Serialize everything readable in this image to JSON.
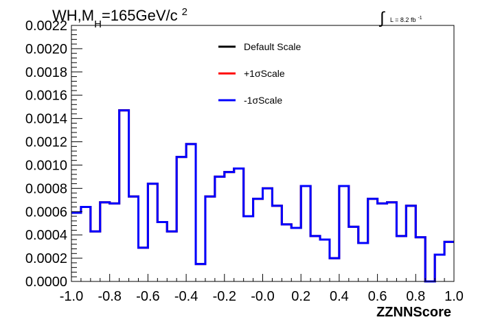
{
  "chart_data": {
    "type": "line",
    "style": "step-histogram",
    "title": {
      "main": "WH,M",
      "subscript": "H",
      "tail": "=165GeV/c",
      "superscript": "2"
    },
    "lumi": {
      "integral_symbol": "∫",
      "text": "L = 8.2 fb",
      "superscript": "-1"
    },
    "xlabel": "ZZNNScore",
    "ylabel": "",
    "xlim": [
      -1.0,
      1.0
    ],
    "ylim": [
      0.0,
      0.0022
    ],
    "x_ticks": [
      "-1.0",
      "-0.8",
      "-0.6",
      "-0.4",
      "-0.2",
      "-0.0",
      "0.2",
      "0.4",
      "0.6",
      "0.8",
      "1.0"
    ],
    "x_tick_values": [
      -1.0,
      -0.8,
      -0.6,
      -0.4,
      -0.2,
      0.0,
      0.2,
      0.4,
      0.6,
      0.8,
      1.0
    ],
    "y_ticks": [
      "0.0000",
      "0.0002",
      "0.0004",
      "0.0006",
      "0.0008",
      "0.0010",
      "0.0012",
      "0.0014",
      "0.0016",
      "0.0018",
      "0.0020",
      "0.0022"
    ],
    "y_tick_values": [
      0.0,
      0.0002,
      0.0004,
      0.0006,
      0.0008,
      0.001,
      0.0012,
      0.0014,
      0.0016,
      0.0018,
      0.002,
      0.0022
    ],
    "bin_edges": [
      -1.0,
      -0.95,
      -0.9,
      -0.85,
      -0.8,
      -0.75,
      -0.7,
      -0.65,
      -0.6,
      -0.55,
      -0.5,
      -0.45,
      -0.4,
      -0.35,
      -0.3,
      -0.25,
      -0.2,
      -0.15,
      -0.1,
      -0.05,
      0.0,
      0.05,
      0.1,
      0.15,
      0.2,
      0.25,
      0.3,
      0.35,
      0.4,
      0.45,
      0.5,
      0.55,
      0.6,
      0.65,
      0.7,
      0.75,
      0.8,
      0.85,
      0.9,
      0.95,
      1.0
    ],
    "legend_position": "top-center",
    "series": [
      {
        "name": "Default Scale",
        "color": "#000000",
        "values": [
          0.00059,
          0.00064,
          0.00043,
          0.00068,
          0.00067,
          0.00147,
          0.00073,
          0.00029,
          0.00084,
          0.00051,
          0.00043,
          0.00107,
          0.00118,
          0.00015,
          0.00073,
          0.0009,
          0.00094,
          0.00097,
          0.00056,
          0.00071,
          0.0008,
          0.00065,
          0.00049,
          0.00046,
          0.00082,
          0.00039,
          0.00036,
          0.0002,
          0.00082,
          0.00047,
          0.00033,
          0.00071,
          0.00067,
          0.00068,
          0.00039,
          0.00065,
          0.00038,
          0.0,
          0.00023,
          0.00034
        ]
      },
      {
        "name": "+1σScale",
        "color": "#ff0000",
        "values": [
          0.00059,
          0.00064,
          0.00043,
          0.00068,
          0.00067,
          0.00147,
          0.00073,
          0.00029,
          0.00084,
          0.00051,
          0.00043,
          0.00107,
          0.00118,
          0.00015,
          0.00073,
          0.0009,
          0.00094,
          0.00097,
          0.00056,
          0.00071,
          0.0008,
          0.00065,
          0.00049,
          0.00046,
          0.00082,
          0.00039,
          0.00036,
          0.0002,
          0.00082,
          0.00047,
          0.00033,
          0.00071,
          0.00067,
          0.00068,
          0.00039,
          0.00065,
          0.00038,
          0.0,
          0.00023,
          0.00034
        ]
      },
      {
        "name": "-1σScale",
        "color": "#0000ff",
        "values": [
          0.00059,
          0.00064,
          0.00043,
          0.00068,
          0.00067,
          0.00147,
          0.00073,
          0.00029,
          0.00084,
          0.00051,
          0.00043,
          0.00107,
          0.00118,
          0.00015,
          0.00073,
          0.0009,
          0.00094,
          0.00097,
          0.00056,
          0.00071,
          0.0008,
          0.00065,
          0.00049,
          0.00046,
          0.00082,
          0.00039,
          0.00036,
          0.0002,
          0.00082,
          0.00047,
          0.00033,
          0.00071,
          0.00067,
          0.00068,
          0.00039,
          0.00065,
          0.00038,
          0.0,
          0.00023,
          0.00034
        ]
      }
    ],
    "grid": false
  }
}
